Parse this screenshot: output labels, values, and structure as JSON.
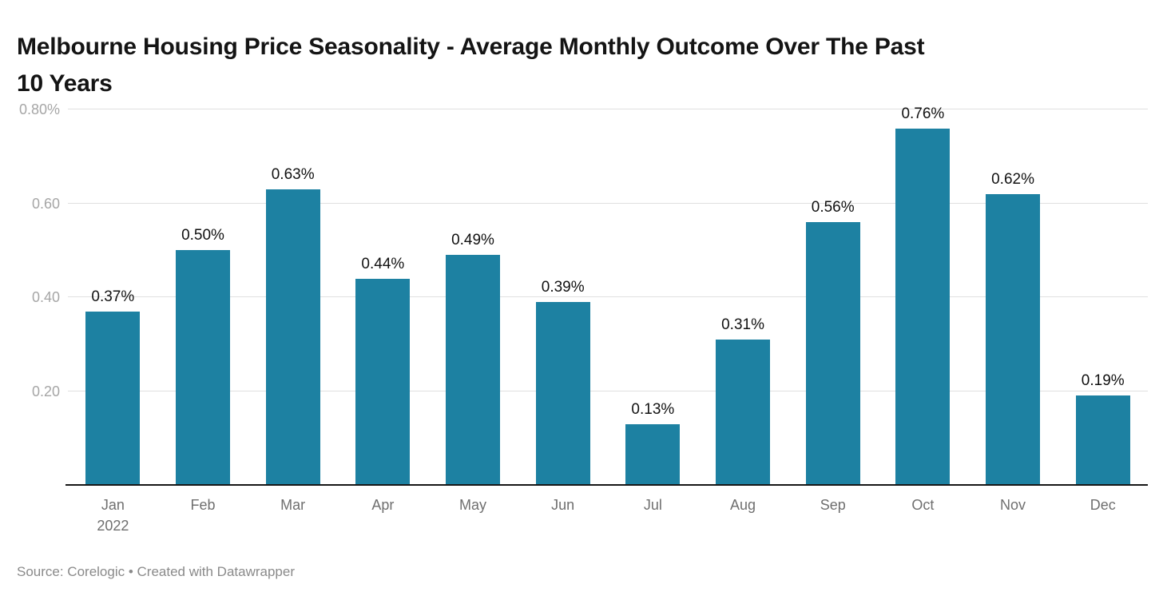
{
  "header": {
    "title_lines": [
      "Melbourne Housing Price Seasonality - Average Monthly Outcome Over The Past",
      "10 Years"
    ]
  },
  "footer": {
    "text": "Source: Corelogic • Created with Datawrapper"
  },
  "chart_data": {
    "type": "bar",
    "title": "Melbourne Housing Price Seasonality - Average Monthly Outcome Over The Past 10 Years",
    "categories": [
      "Jan",
      "Feb",
      "Mar",
      "Apr",
      "May",
      "Jun",
      "Jul",
      "Aug",
      "Sep",
      "Oct",
      "Nov",
      "Dec"
    ],
    "first_category_subline": "2022",
    "values": [
      0.37,
      0.5,
      0.63,
      0.44,
      0.49,
      0.39,
      0.13,
      0.31,
      0.56,
      0.76,
      0.62,
      0.19
    ],
    "data_labels": [
      "0.37%",
      "0.50%",
      "0.63%",
      "0.44%",
      "0.49%",
      "0.39%",
      "0.13%",
      "0.31%",
      "0.56%",
      "0.76%",
      "0.62%",
      "0.19%"
    ],
    "unit": "%",
    "xlabel": "",
    "ylabel": "",
    "y_ticks": [
      {
        "value": 0.8,
        "label": "0.80%"
      },
      {
        "value": 0.6,
        "label": "0.60"
      },
      {
        "value": 0.4,
        "label": "0.40"
      },
      {
        "value": 0.2,
        "label": "0.20"
      }
    ],
    "ylim": [
      0,
      0.8
    ],
    "grid": "horizontal",
    "legend": "none",
    "bar_color": "#1d81a2",
    "source": "Corelogic",
    "credit": "Created with Datawrapper"
  }
}
